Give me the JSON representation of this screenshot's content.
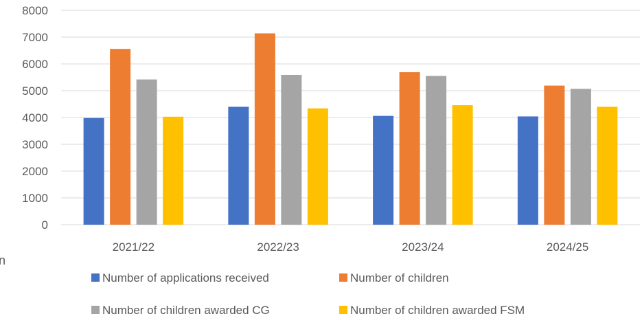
{
  "stray_glyph": "n",
  "chart_data": {
    "type": "bar",
    "title": "",
    "xlabel": "",
    "ylabel": "",
    "ylim": [
      0,
      8000
    ],
    "yticks": [
      0,
      1000,
      2000,
      3000,
      4000,
      5000,
      6000,
      7000,
      8000
    ],
    "categories": [
      "2021/22",
      "2022/23",
      "2023/24",
      "2024/25"
    ],
    "grid": true,
    "legend_position": "bottom",
    "series": [
      {
        "name": "Number of applications received",
        "color": "#4472c4",
        "values": [
          3980,
          4400,
          4060,
          4040
        ]
      },
      {
        "name": "Number of children",
        "color": "#ed7d31",
        "values": [
          6560,
          7140,
          5690,
          5190
        ]
      },
      {
        "name": "Number of children awarded CG",
        "color": "#a5a5a5",
        "values": [
          5420,
          5590,
          5550,
          5070
        ]
      },
      {
        "name": "Number of children awarded FSM",
        "color": "#ffc000",
        "values": [
          4030,
          4340,
          4460,
          4400
        ]
      }
    ]
  }
}
